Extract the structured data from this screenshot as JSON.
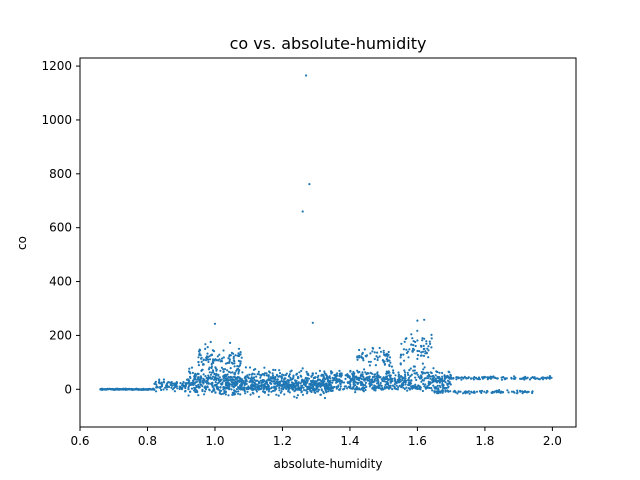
{
  "chart_data": {
    "type": "scatter",
    "title": "co vs. absolute-humidity",
    "xlabel": "absolute-humidity",
    "ylabel": "co",
    "xlim": [
      0.6,
      2.07
    ],
    "ylim": [
      -140,
      1230
    ],
    "xticks": [
      0.6,
      0.8,
      1.0,
      1.2,
      1.4,
      1.6,
      1.8,
      2.0
    ],
    "xtick_labels": [
      "0.6",
      "0.8",
      "1.0",
      "1.2",
      "1.4",
      "1.6",
      "1.8",
      "2.0"
    ],
    "yticks": [
      0,
      200,
      400,
      600,
      800,
      1000,
      1200
    ],
    "ytick_labels": [
      "0",
      "200",
      "400",
      "600",
      "800",
      "1000",
      "1200"
    ],
    "grid": false,
    "color": "#1f77b4",
    "outliers": [
      {
        "x": 1.27,
        "y": 1165
      },
      {
        "x": 1.28,
        "y": 762
      },
      {
        "x": 1.26,
        "y": 660
      },
      {
        "x": 1.29,
        "y": 247
      },
      {
        "x": 1.0,
        "y": 243
      },
      {
        "x": 1.62,
        "y": 258
      },
      {
        "x": 1.6,
        "y": 255
      }
    ],
    "clusters": [
      {
        "x_range": [
          0.66,
          0.82
        ],
        "y_center": 0,
        "y_spread": 2,
        "count": 160
      },
      {
        "x_range": [
          0.82,
          0.92
        ],
        "y_center": 15,
        "y_spread": 20,
        "count": 90
      },
      {
        "x_range": [
          0.92,
          1.35
        ],
        "y_center": 25,
        "y_spread": 45,
        "count": 900
      },
      {
        "x_range": [
          0.95,
          1.08
        ],
        "y_center": 110,
        "y_spread": 45,
        "count": 110
      },
      {
        "x_range": [
          1.35,
          1.7
        ],
        "y_center": 35,
        "y_spread": 35,
        "count": 500
      },
      {
        "x_range": [
          1.42,
          1.52
        ],
        "y_center": 120,
        "y_spread": 40,
        "count": 60
      },
      {
        "x_range": [
          1.55,
          1.65
        ],
        "y_center": 150,
        "y_spread": 60,
        "count": 70
      },
      {
        "x_range": [
          1.65,
          2.0
        ],
        "y_center": 42,
        "y_spread": 6,
        "count": 120
      },
      {
        "x_range": [
          1.65,
          1.95
        ],
        "y_center": -10,
        "y_spread": 5,
        "count": 100
      },
      {
        "x_range": [
          1.0,
          1.7
        ],
        "y_center": 5,
        "y_spread": 8,
        "count": 200
      }
    ]
  }
}
